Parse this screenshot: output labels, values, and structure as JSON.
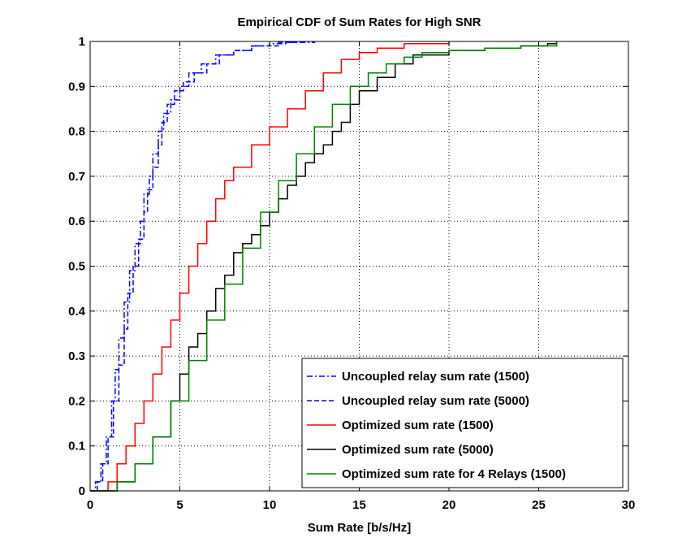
{
  "chart_data": {
    "type": "line",
    "title": "Empirical CDF of Sum Rates for High SNR",
    "xlabel": "Sum Rate [b/s/Hz]",
    "ylabel": "",
    "xlim": [
      0,
      30
    ],
    "ylim": [
      0,
      1
    ],
    "xticks": [
      0,
      5,
      10,
      15,
      20,
      25,
      30
    ],
    "xtick_labels": [
      "0",
      "5",
      "10",
      "15",
      "20",
      "25",
      "30"
    ],
    "yticks": [
      0,
      0.1,
      0.2,
      0.3,
      0.4,
      0.5,
      0.6,
      0.7,
      0.8,
      0.9,
      1
    ],
    "ytick_labels": [
      "0",
      "0.1",
      "0.2",
      "0.3",
      "0.4",
      "0.5",
      "0.6",
      "0.7",
      "0.8",
      "0.9",
      "1"
    ],
    "grid": true,
    "legend_position": "bottom-right",
    "series": [
      {
        "name": "Uncoupled relay sum rate (1500)",
        "color": "#0000ff",
        "style": "dashdot",
        "x": [
          0,
          0.3,
          0.6,
          0.9,
          1.2,
          1.4,
          1.6,
          1.9,
          2.2,
          2.5,
          2.8,
          3.0,
          3.3,
          3.5,
          3.8,
          4.1,
          4.5,
          5.0,
          5.5,
          6.2,
          7.0,
          8.0,
          9.0,
          10.0,
          11.0,
          12.5
        ],
        "y": [
          0,
          0.02,
          0.06,
          0.12,
          0.2,
          0.27,
          0.34,
          0.42,
          0.49,
          0.55,
          0.6,
          0.66,
          0.7,
          0.75,
          0.8,
          0.84,
          0.87,
          0.9,
          0.93,
          0.95,
          0.97,
          0.98,
          0.99,
          0.995,
          0.998,
          1.0
        ]
      },
      {
        "name": "Uncoupled relay sum rate (5000)",
        "color": "#0000ff",
        "style": "dashed",
        "x": [
          0,
          0.4,
          0.7,
          1.0,
          1.3,
          1.6,
          1.9,
          2.1,
          2.4,
          2.7,
          3.0,
          3.2,
          3.5,
          3.8,
          4.0,
          4.3,
          4.7,
          5.2,
          5.8,
          6.5,
          7.2,
          8.0,
          9.0,
          10.5,
          12.0
        ],
        "y": [
          0,
          0.02,
          0.06,
          0.12,
          0.2,
          0.28,
          0.36,
          0.44,
          0.5,
          0.56,
          0.62,
          0.67,
          0.72,
          0.77,
          0.82,
          0.86,
          0.89,
          0.91,
          0.93,
          0.95,
          0.97,
          0.98,
          0.99,
          0.998,
          1.0
        ]
      },
      {
        "name": "Optimized sum rate (1500)",
        "color": "#ff0000",
        "style": "solid",
        "x": [
          0,
          1.0,
          1.5,
          2.0,
          2.5,
          3.0,
          3.5,
          4.0,
          4.5,
          5.0,
          5.5,
          6.0,
          6.5,
          7.0,
          7.5,
          8.0,
          9.0,
          10.0,
          11.0,
          12.0,
          13.0,
          14.0,
          15.0,
          16.0,
          17.5,
          20.0
        ],
        "y": [
          0,
          0.02,
          0.06,
          0.1,
          0.15,
          0.2,
          0.26,
          0.32,
          0.38,
          0.44,
          0.5,
          0.55,
          0.6,
          0.65,
          0.69,
          0.72,
          0.77,
          0.81,
          0.85,
          0.89,
          0.93,
          0.96,
          0.975,
          0.985,
          0.995,
          1.0
        ]
      },
      {
        "name": "Optimized sum rate (5000)",
        "color": "#000000",
        "style": "solid",
        "x": [
          0,
          1.5,
          2.5,
          3.5,
          4.5,
          5.0,
          5.5,
          6.0,
          6.5,
          7.0,
          7.5,
          8.0,
          8.5,
          9.0,
          9.5,
          10.0,
          10.5,
          11.0,
          11.5,
          12.0,
          12.5,
          13.0,
          13.5,
          14.0,
          14.5,
          15.0,
          16.0,
          17.0,
          18.0,
          20.0,
          22.0,
          24.0,
          25.5,
          26.0
        ],
        "y": [
          0,
          0.02,
          0.06,
          0.12,
          0.2,
          0.26,
          0.32,
          0.35,
          0.4,
          0.45,
          0.48,
          0.53,
          0.55,
          0.57,
          0.59,
          0.62,
          0.65,
          0.68,
          0.7,
          0.73,
          0.75,
          0.77,
          0.8,
          0.82,
          0.86,
          0.89,
          0.92,
          0.95,
          0.97,
          0.98,
          0.985,
          0.99,
          0.995,
          1.0
        ]
      },
      {
        "name": "Optimized sum rate for 4 Relays (1500)",
        "color": "#008000",
        "style": "solid",
        "x": [
          0,
          1.5,
          2.5,
          3.5,
          4.5,
          5.5,
          6.5,
          7.5,
          8.5,
          9.5,
          10.5,
          11.5,
          12.5,
          13.5,
          14.5,
          15.5,
          16.5,
          17.5,
          18.5,
          20.0,
          22.0,
          24.0,
          26.0
        ],
        "y": [
          0,
          0.02,
          0.06,
          0.12,
          0.2,
          0.29,
          0.38,
          0.46,
          0.54,
          0.62,
          0.69,
          0.75,
          0.81,
          0.86,
          0.9,
          0.93,
          0.95,
          0.965,
          0.975,
          0.98,
          0.985,
          0.99,
          1.0
        ]
      }
    ]
  }
}
